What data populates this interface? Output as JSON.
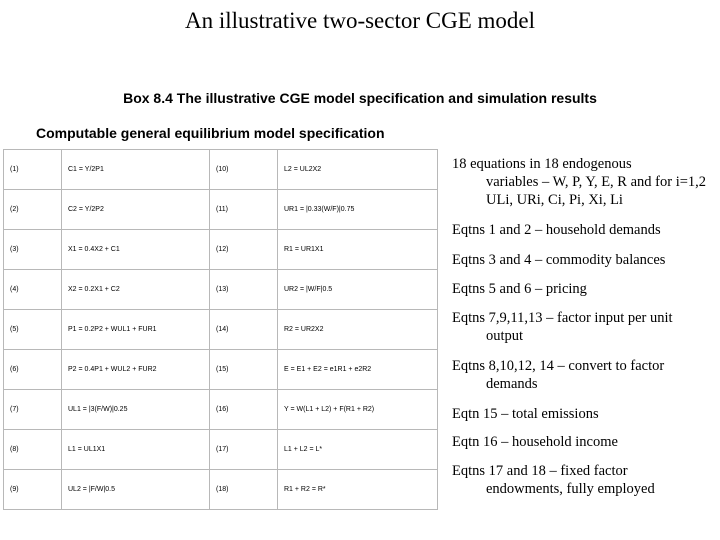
{
  "title": "An illustrative two-sector CGE model",
  "box_heading": "Box 8.4 The illustrative CGE model specification and simulation results",
  "spec_heading": "Computable general equilibrium model specification",
  "equations": [
    {
      "num_left": "(1)",
      "eq_left": "C1 = Y/2P1",
      "num_right": "(10)",
      "eq_right": "L2 = UL2X2"
    },
    {
      "num_left": "(2)",
      "eq_left": "C2 = Y/2P2",
      "num_right": "(11)",
      "eq_right": "UR1 = |0.33(W/F)|0.75"
    },
    {
      "num_left": "(3)",
      "eq_left": "X1 = 0.4X2 + C1",
      "num_right": "(12)",
      "eq_right": "R1 = UR1X1"
    },
    {
      "num_left": "(4)",
      "eq_left": "X2 = 0.2X1 + C2",
      "num_right": "(13)",
      "eq_right": "UR2 = |W/F|0.5"
    },
    {
      "num_left": "(5)",
      "eq_left": "P1 = 0.2P2 + WUL1 + FUR1",
      "num_right": "(14)",
      "eq_right": "R2 = UR2X2"
    },
    {
      "num_left": "(6)",
      "eq_left": "P2 = 0.4P1 + WUL2 + FUR2",
      "num_right": "(15)",
      "eq_right": "E = E1 + E2 = e1R1 + e2R2"
    },
    {
      "num_left": "(7)",
      "eq_left": "UL1 = |3(F/W)|0.25",
      "num_right": "(16)",
      "eq_right": "Y = W(L1 + L2) + F(R1 + R2)"
    },
    {
      "num_left": "(8)",
      "eq_left": "L1 = UL1X1",
      "num_right": "(17)",
      "eq_right": "L1 + L2 = L*"
    },
    {
      "num_left": "(9)",
      "eq_left": "UL2 = |F/W|0.5",
      "num_right": "(18)",
      "eq_right": "R1 + R2 = R*"
    }
  ],
  "notes": [
    {
      "first": "18 equations in 18 endogenous",
      "rest": "variables – W, P, Y, E, R and for i=1,2 ULi, URi, Ci, Pi, Xi, Li"
    },
    {
      "first": "Eqtns 1 and 2 – household demands",
      "rest": ""
    },
    {
      "first": "Eqtns  3 and 4 – commodity balances",
      "rest": ""
    },
    {
      "first": "Eqtns 5 and 6 – pricing",
      "rest": ""
    },
    {
      "first": "Eqtns 7,9,11,13 – factor input per unit",
      "rest": "output"
    },
    {
      "first": "Eqtns 8,10,12, 14 – convert to factor",
      "rest": "demands"
    },
    {
      "first": "Eqtn 15 – total emissions",
      "rest": ""
    },
    {
      "first": "Eqtn 16 – household income",
      "rest": ""
    },
    {
      "first": "Eqtns 17 and 18 – fixed factor",
      "rest": "endowments, fully employed"
    }
  ]
}
